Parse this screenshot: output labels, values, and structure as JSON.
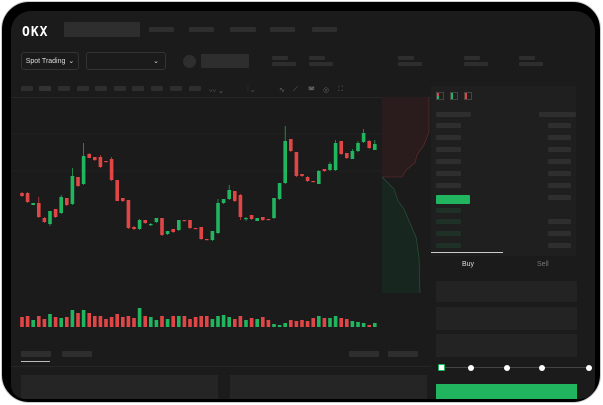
{
  "header": {
    "logo": "OKX"
  },
  "toolbar": {
    "market_select": "Spot Trading",
    "chevron": "⌄"
  },
  "chart_icons": [
    "indicator-icon",
    "chart-type-icon",
    "line-icon",
    "ruler-icon",
    "camera-icon",
    "settings-icon",
    "fullscreen-icon"
  ],
  "trade": {
    "buy_label": "Buy",
    "sell_label": "Sell",
    "slider_percent": 0
  },
  "colors": {
    "up": "#22b55f",
    "down": "#e04646",
    "bg": "#1b1b1b",
    "button": "#22b55f"
  },
  "chart_data": {
    "type": "candlestick",
    "candles": [
      [
        68,
        65,
        69,
        64
      ],
      [
        68,
        59,
        69,
        58
      ],
      [
        56,
        58,
        58,
        56
      ],
      [
        58,
        44,
        64,
        43
      ],
      [
        43,
        39,
        44,
        38
      ],
      [
        37,
        50,
        50,
        35
      ],
      [
        52,
        44,
        52,
        43
      ],
      [
        48,
        64,
        66,
        47
      ],
      [
        63,
        56,
        63,
        55
      ],
      [
        57,
        85,
        93,
        56
      ],
      [
        84,
        75,
        84,
        74
      ],
      [
        77,
        105,
        118,
        76
      ],
      [
        107,
        103,
        108,
        103
      ],
      [
        104,
        101,
        104,
        100
      ],
      [
        104,
        94,
        106,
        93
      ],
      [
        100,
        99,
        100,
        99
      ],
      [
        102,
        81,
        104,
        80
      ],
      [
        81,
        60,
        81,
        60
      ],
      [
        63,
        60,
        63,
        59
      ],
      [
        61,
        33,
        61,
        32
      ],
      [
        34,
        32,
        35,
        31
      ],
      [
        32,
        41,
        42,
        31
      ],
      [
        41,
        38,
        41,
        37
      ],
      [
        36,
        37,
        38,
        35
      ],
      [
        39,
        43,
        43,
        38
      ],
      [
        43,
        26,
        43,
        25
      ],
      [
        27,
        30,
        30,
        26
      ],
      [
        32,
        29,
        32,
        28
      ],
      [
        31,
        41,
        41,
        30
      ],
      [
        41,
        40,
        41,
        40
      ],
      [
        41,
        33,
        41,
        32
      ],
      [
        33,
        32,
        33,
        32
      ],
      [
        34,
        22,
        34,
        21
      ],
      [
        22,
        21,
        22,
        21
      ],
      [
        21,
        30,
        30,
        20
      ],
      [
        28,
        58,
        62,
        27
      ],
      [
        58,
        62,
        62,
        57
      ],
      [
        62,
        71,
        76,
        61
      ],
      [
        70,
        60,
        70,
        59
      ],
      [
        66,
        44,
        67,
        41
      ],
      [
        42,
        43,
        44,
        40
      ],
      [
        46,
        42,
        46,
        41
      ],
      [
        40,
        43,
        43,
        40
      ],
      [
        44,
        41,
        44,
        40
      ],
      [
        42,
        41,
        42,
        41
      ],
      [
        43,
        63,
        63,
        42
      ],
      [
        62,
        78,
        78,
        61
      ],
      [
        78,
        120,
        135,
        77
      ],
      [
        122,
        110,
        122,
        109
      ],
      [
        109,
        85,
        109,
        84
      ],
      [
        87,
        85,
        87,
        84
      ],
      [
        84,
        80,
        85,
        79
      ],
      [
        80,
        79,
        80,
        79
      ],
      [
        77,
        90,
        91,
        77
      ],
      [
        92,
        90,
        92,
        89
      ],
      [
        91,
        97,
        99,
        90
      ],
      [
        91,
        118,
        121,
        90
      ],
      [
        120,
        107,
        120,
        106
      ],
      [
        108,
        103,
        108,
        102
      ],
      [
        102,
        110,
        112,
        102
      ],
      [
        110,
        118,
        120,
        109
      ],
      [
        119,
        128,
        132,
        118
      ],
      [
        120,
        113,
        121,
        112
      ],
      [
        111,
        117,
        121,
        111
      ]
    ],
    "volume": [
      10,
      11,
      7,
      11,
      8,
      13,
      10,
      9,
      10,
      17,
      14,
      17,
      14,
      11,
      11,
      8,
      10,
      13,
      10,
      11,
      9,
      19,
      11,
      10,
      7,
      11,
      8,
      11,
      11,
      11,
      8,
      10,
      11,
      11,
      8,
      11,
      12,
      10,
      8,
      11,
      7,
      9,
      8,
      10,
      7,
      3,
      2,
      4,
      7,
      6,
      7,
      6,
      9,
      11,
      9,
      9,
      11,
      9,
      8,
      6,
      5,
      4,
      2,
      4
    ]
  }
}
